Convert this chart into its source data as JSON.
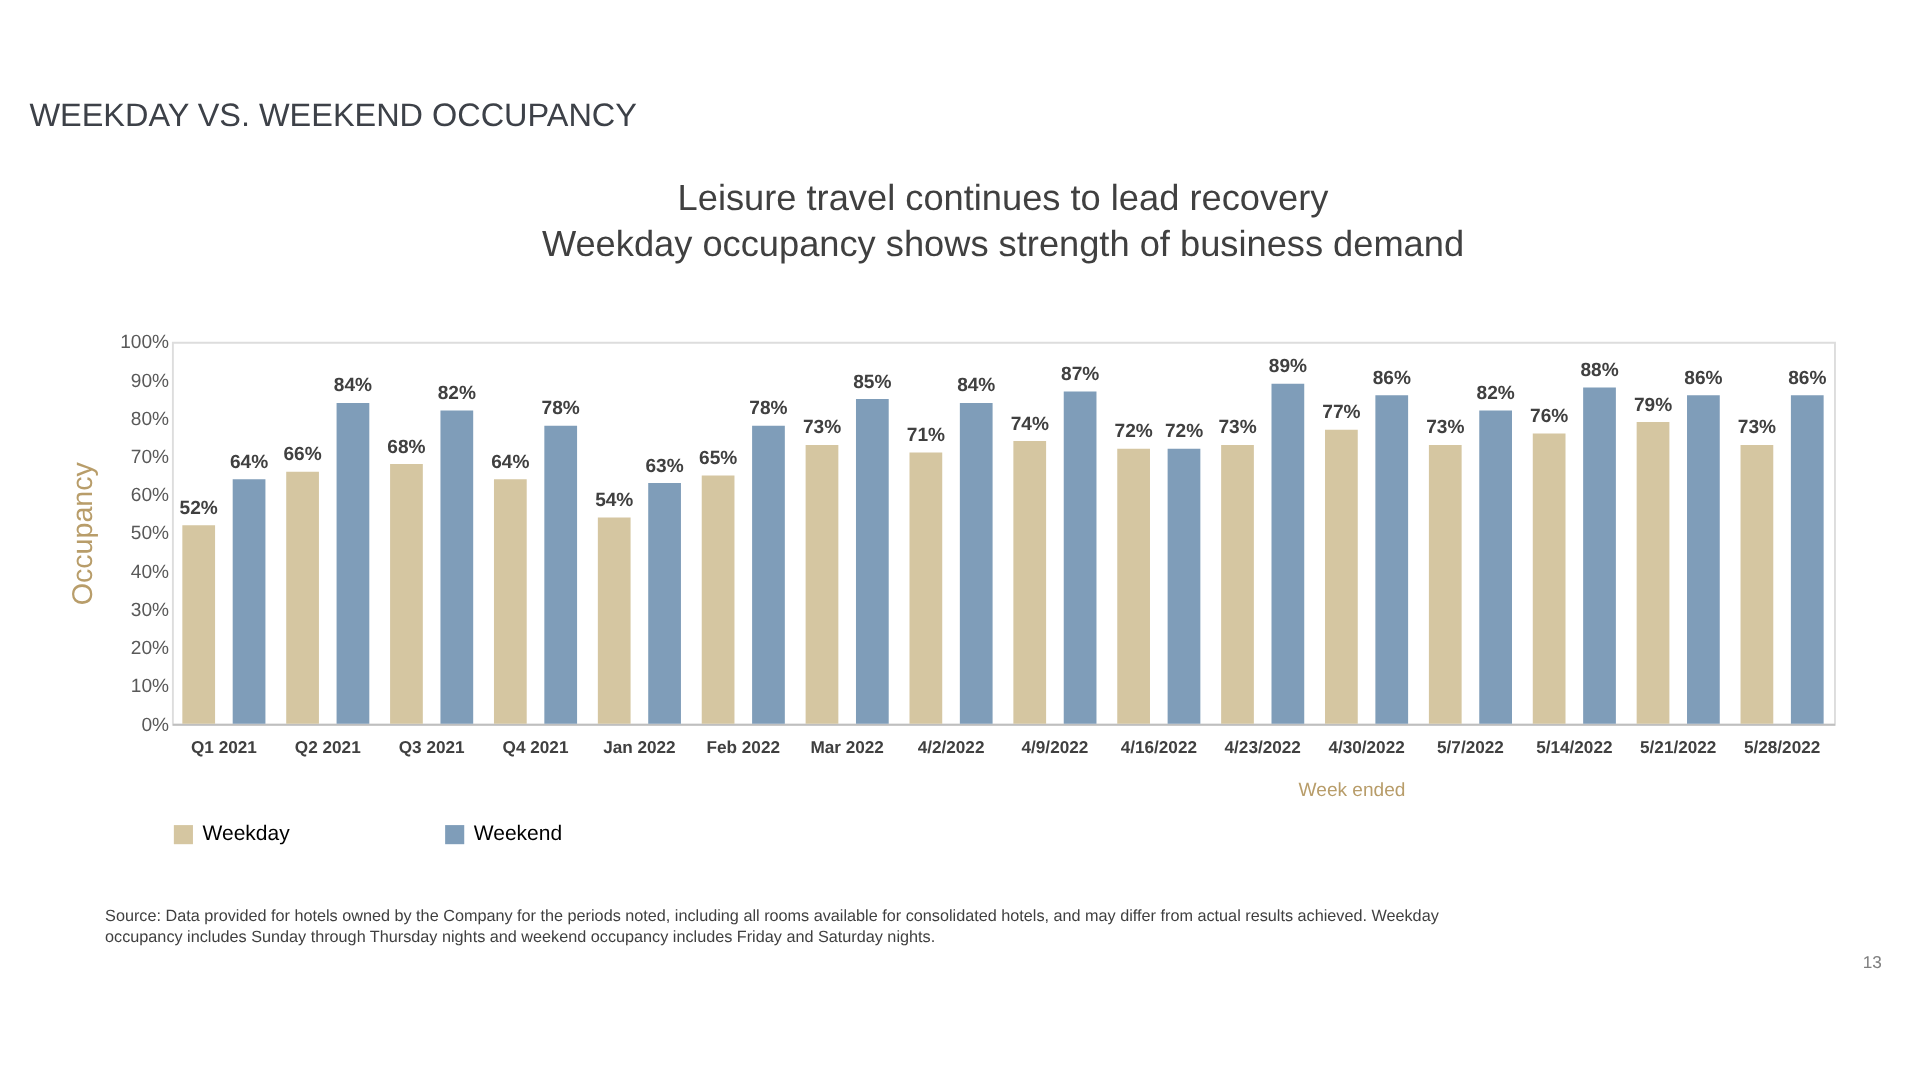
{
  "chart_data": {
    "type": "bar",
    "title": "WEEKDAY VS. WEEKEND OCCUPANCY",
    "subtitle": "Leisure travel continues to lead recovery\nWeekday occupancy shows strength of business demand",
    "ylabel": "Occupancy",
    "categories": [
      "Q1 2021",
      "Q2 2021",
      "Q3 2021",
      "Q4 2021",
      "Jan 2022",
      "Feb 2022",
      "Mar 2022",
      "4/2/2022",
      "4/9/2022",
      "4/16/2022",
      "4/23/2022",
      "4/30/2022",
      "5/7/2022",
      "5/14/2022",
      "5/21/2022",
      "5/28/2022"
    ],
    "series": [
      {
        "name": "Weekday",
        "color": "#d5c6a1",
        "values": [
          52,
          66,
          68,
          64,
          54,
          65,
          73,
          71,
          74,
          72,
          73,
          77,
          73,
          76,
          79,
          73
        ],
        "value_labels": [
          "52%",
          "66%",
          "68%",
          "64%",
          "54%",
          "65%",
          "73%",
          "71%",
          "74%",
          "72%",
          "73%",
          "77%",
          "73%",
          "76%",
          "79%",
          "73%"
        ]
      },
      {
        "name": "Weekend",
        "color": "#7f9db9",
        "values": [
          64,
          84,
          82,
          78,
          63,
          78,
          85,
          84,
          87,
          72,
          89,
          86,
          82,
          88,
          86,
          86
        ],
        "value_labels": [
          "64%",
          "84%",
          "82%",
          "78%",
          "63%",
          "78%",
          "85%",
          "84%",
          "87%",
          "72%",
          "89%",
          "86%",
          "82%",
          "88%",
          "86%",
          "86%"
        ]
      }
    ],
    "ylim": [
      0,
      100
    ],
    "yticks": [
      {
        "value": 0,
        "label": "0%"
      },
      {
        "value": 10,
        "label": "10%"
      },
      {
        "value": 20,
        "label": "20%"
      },
      {
        "value": 30,
        "label": "30%"
      },
      {
        "value": 40,
        "label": "40%"
      },
      {
        "value": 50,
        "label": "50%"
      },
      {
        "value": 60,
        "label": "60%"
      },
      {
        "value": 70,
        "label": "70%"
      },
      {
        "value": 80,
        "label": "80%"
      },
      {
        "value": 90,
        "label": "90%"
      },
      {
        "value": 100,
        "label": "100%"
      }
    ],
    "legend": "bottom",
    "grid": false,
    "annotations": [
      "Week ended",
      "Source:  Data provided for hotels owned by the Company for the periods noted, including all rooms available for consolidated hotels, and may differ from actual results achieved. Weekday occupancy includes Sunday through Thursday nights and weekend occupancy includes Friday and Saturday nights.",
      "13"
    ]
  }
}
